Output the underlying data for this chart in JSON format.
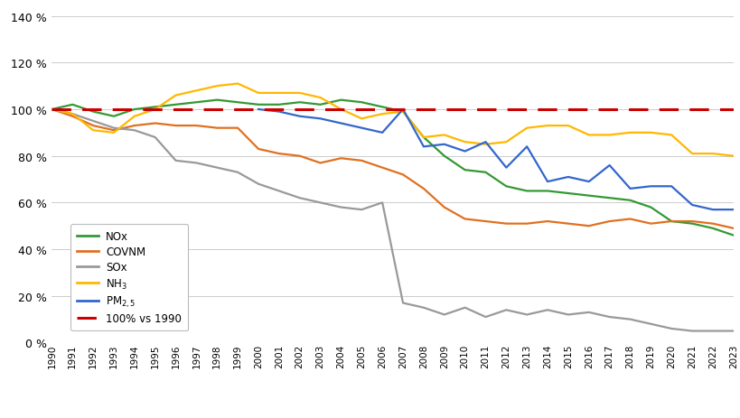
{
  "years_1990": [
    1990,
    1991,
    1992,
    1993,
    1994,
    1995,
    1996,
    1997,
    1998,
    1999,
    2000,
    2001,
    2002,
    2003,
    2004,
    2005,
    2006,
    2007,
    2008,
    2009,
    2010,
    2011,
    2012,
    2013,
    2014,
    2015,
    2016,
    2017,
    2018,
    2019,
    2020,
    2021,
    2022,
    2023
  ],
  "NOx": [
    100,
    102,
    99,
    97,
    100,
    101,
    102,
    103,
    104,
    103,
    102,
    102,
    103,
    102,
    104,
    103,
    101,
    99,
    88,
    80,
    74,
    73,
    67,
    65,
    65,
    64,
    63,
    62,
    61,
    58,
    52,
    51,
    49,
    46
  ],
  "COVNM": [
    100,
    97,
    93,
    91,
    93,
    94,
    93,
    93,
    92,
    92,
    83,
    81,
    80,
    77,
    79,
    78,
    75,
    72,
    66,
    58,
    53,
    52,
    51,
    51,
    52,
    51,
    50,
    52,
    53,
    51,
    52,
    52,
    51,
    49
  ],
  "SOx": [
    100,
    98,
    95,
    92,
    91,
    88,
    78,
    77,
    75,
    73,
    68,
    65,
    62,
    60,
    58,
    57,
    60,
    17,
    15,
    12,
    15,
    11,
    14,
    12,
    14,
    12,
    13,
    11,
    10,
    8,
    6,
    5,
    5,
    5
  ],
  "NH3": [
    100,
    98,
    91,
    90,
    97,
    100,
    106,
    108,
    110,
    111,
    107,
    107,
    107,
    105,
    100,
    96,
    98,
    99,
    88,
    89,
    86,
    85,
    86,
    92,
    93,
    93,
    89,
    89,
    90,
    90,
    89,
    81,
    81,
    80
  ],
  "years_2000": [
    2000,
    2001,
    2002,
    2003,
    2004,
    2005,
    2006,
    2007,
    2008,
    2009,
    2010,
    2011,
    2012,
    2013,
    2014,
    2015,
    2016,
    2017,
    2018,
    2019,
    2020,
    2021,
    2022,
    2023
  ],
  "PM25": [
    100,
    99,
    97,
    96,
    94,
    92,
    90,
    100,
    84,
    85,
    82,
    86,
    75,
    84,
    69,
    71,
    69,
    76,
    66,
    67,
    67,
    59,
    57,
    57
  ],
  "ylim": [
    0,
    140
  ],
  "yticks": [
    0,
    20,
    40,
    60,
    80,
    100,
    120,
    140
  ],
  "colors": {
    "NOx": "#339933",
    "COVNM": "#E07020",
    "SOx": "#999999",
    "NH3": "#FFB800",
    "PM25": "#3366CC",
    "ref": "#CC0000"
  }
}
